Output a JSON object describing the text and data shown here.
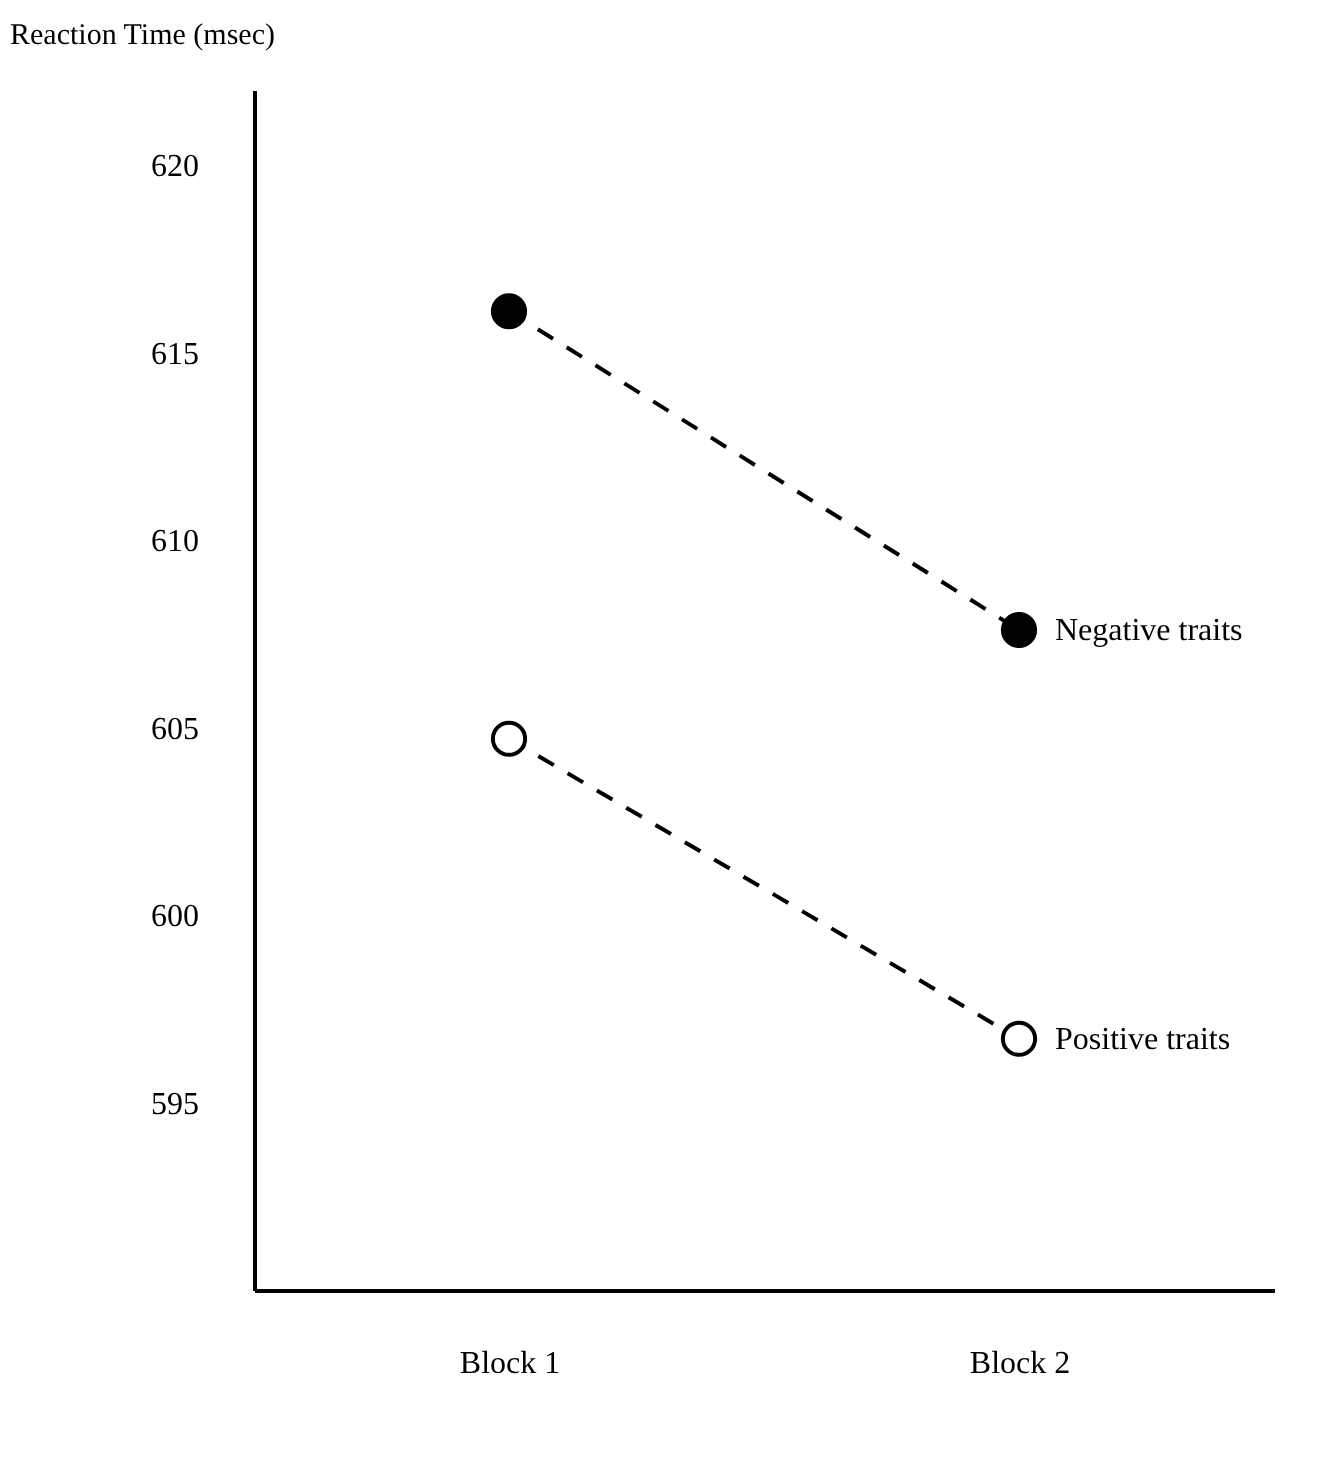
{
  "chart_data": {
    "type": "line",
    "ylabel": "Reaction Time (msec)",
    "categories": [
      "Block 1",
      "Block 2"
    ],
    "series": [
      {
        "name": "Negative traits",
        "color": "#000000",
        "values": [
          616.1,
          607.6
        ]
      },
      {
        "name": "Positive traits",
        "color": "#000000",
        "values": [
          604.7,
          596.7
        ]
      }
    ],
    "ylim": [
      590,
      622
    ],
    "yticks": [
      595,
      600,
      605,
      610,
      615,
      620
    ],
    "grid": false,
    "legend": false,
    "marker": "circle",
    "line_style": "dashed"
  }
}
